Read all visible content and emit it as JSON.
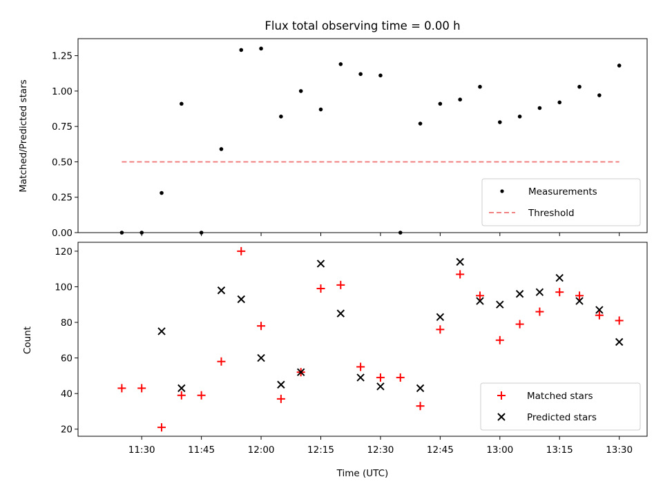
{
  "chart_data": [
    {
      "type": "scatter",
      "title": "Flux total observing time = 0.00 h",
      "xlabel": "",
      "ylabel": "Matched/Predicted stars",
      "ylim": [
        0,
        1.37
      ],
      "yticks": [
        "0.00",
        "0.25",
        "0.50",
        "0.75",
        "1.00",
        "1.25"
      ],
      "grid": false,
      "legend": "bottom-right",
      "x": [
        "11:25",
        "11:30",
        "11:35",
        "11:40",
        "11:45",
        "11:50",
        "11:55",
        "12:00",
        "12:05",
        "12:10",
        "12:15",
        "12:20",
        "12:25",
        "12:30",
        "12:35",
        "12:40",
        "12:45",
        "12:50",
        "12:55",
        "13:00",
        "13:05",
        "13:10",
        "13:15",
        "13:20",
        "13:25",
        "13:30"
      ],
      "series": [
        {
          "name": "Measurements",
          "color": "#000000",
          "marker": "dot",
          "values": [
            0.0,
            0.0,
            0.28,
            0.91,
            0.0,
            0.59,
            1.29,
            1.3,
            0.82,
            1.0,
            0.87,
            1.19,
            1.12,
            1.11,
            0.0,
            0.77,
            0.91,
            0.94,
            1.03,
            0.78,
            0.82,
            0.88,
            0.92,
            1.03,
            0.97,
            1.18
          ]
        },
        {
          "name": "Threshold",
          "color": "#f08080",
          "marker": "dashed-line",
          "x": [
            "11:25",
            "13:30"
          ],
          "values": [
            0.5,
            0.5
          ]
        }
      ]
    },
    {
      "type": "scatter",
      "title": "",
      "xlabel": "Time (UTC)",
      "ylabel": "Count",
      "ylim": [
        16,
        125
      ],
      "yticks": [
        "20",
        "40",
        "60",
        "80",
        "100",
        "120"
      ],
      "xticks": [
        "11:30",
        "11:45",
        "12:00",
        "12:15",
        "12:30",
        "12:45",
        "13:00",
        "13:15",
        "13:30"
      ],
      "xlim": [
        "11:14",
        "13:37"
      ],
      "grid": false,
      "legend": "bottom-right",
      "series": [
        {
          "name": "Matched stars",
          "color": "#ff0000",
          "marker": "plus",
          "x": [
            "11:25",
            "11:30",
            "11:35",
            "11:40",
            "11:45",
            "11:50",
            "11:55",
            "12:00",
            "12:05",
            "12:10",
            "12:15",
            "12:20",
            "12:25",
            "12:30",
            "12:35",
            "12:40",
            "12:45",
            "12:50",
            "12:55",
            "13:00",
            "13:05",
            "13:10",
            "13:15",
            "13:20",
            "13:25",
            "13:30"
          ],
          "values": [
            43,
            43,
            21,
            39,
            39,
            58,
            120,
            78,
            37,
            52,
            99,
            101,
            55,
            49,
            49,
            33,
            76,
            107,
            95,
            70,
            79,
            86,
            97,
            95,
            84,
            81
          ]
        },
        {
          "name": "Predicted stars",
          "color": "#000000",
          "marker": "x",
          "x": [
            "11:35",
            "11:40",
            "11:50",
            "11:55",
            "12:00",
            "12:05",
            "12:10",
            "12:15",
            "12:20",
            "12:25",
            "12:30",
            "12:40",
            "12:45",
            "12:50",
            "12:55",
            "13:00",
            "13:05",
            "13:10",
            "13:15",
            "13:20",
            "13:25",
            "13:30"
          ],
          "values": [
            75,
            43,
            98,
            93,
            60,
            45,
            52,
            113,
            85,
            49,
            44,
            43,
            83,
            114,
            92,
            90,
            96,
            97,
            105,
            92,
            87,
            69
          ]
        }
      ]
    }
  ]
}
